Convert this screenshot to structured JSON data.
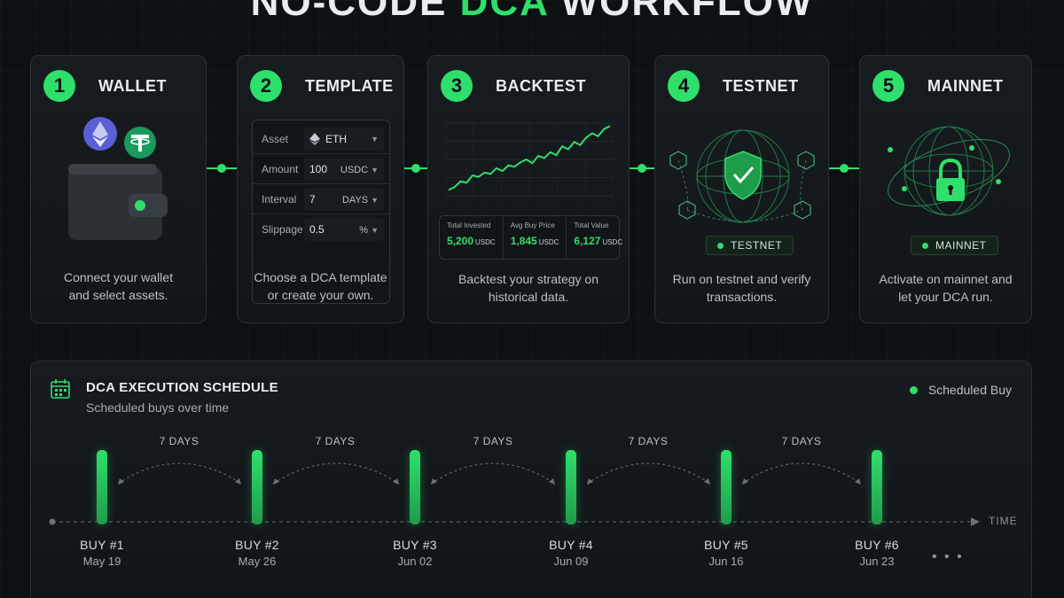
{
  "title": {
    "prefix": "NO-CODE",
    "accent": "DCA",
    "suffix": "WORKFLOW"
  },
  "steps": [
    {
      "num": "1",
      "label": "WALLET",
      "desc": [
        "Connect your wallet",
        "and select assets."
      ]
    },
    {
      "num": "2",
      "label": "TEMPLATE",
      "desc": [
        "Choose a DCA template",
        "or create your own."
      ]
    },
    {
      "num": "3",
      "label": "BACKTEST",
      "desc": [
        "Backtest your strategy on",
        "historical data."
      ]
    },
    {
      "num": "4",
      "label": "TESTNET",
      "desc": [
        "Run on testnet and verify",
        "transactions."
      ]
    },
    {
      "num": "5",
      "label": "MAINNET",
      "desc": [
        "Activate on mainnet and",
        "let your DCA run."
      ]
    }
  ],
  "template_form": [
    {
      "key": "Asset",
      "value": "ETH",
      "unit": ""
    },
    {
      "key": "Amount",
      "value": "100",
      "unit": "USDC"
    },
    {
      "key": "Interval",
      "value": "7",
      "unit": "DAYS"
    },
    {
      "key": "Slippage",
      "value": "0.5",
      "unit": "%"
    }
  ],
  "backtest_stats": [
    {
      "label": "Total Invested",
      "value": "5,200",
      "unit": "USDC"
    },
    {
      "label": "Avg Buy Price",
      "value": "1,845",
      "unit": "USDC"
    },
    {
      "label": "Total Value",
      "value": "6,127",
      "unit": "USDC"
    }
  ],
  "backtest_curve": [
    0.08,
    0.12,
    0.2,
    0.18,
    0.28,
    0.26,
    0.32,
    0.3,
    0.38,
    0.34,
    0.42,
    0.4,
    0.46,
    0.5,
    0.45,
    0.55,
    0.52,
    0.6,
    0.56,
    0.68,
    0.64,
    0.74,
    0.7,
    0.8,
    0.86,
    0.82,
    0.92,
    0.96
  ],
  "badges": {
    "testnet": "TESTNET",
    "mainnet": "MAINNET"
  },
  "schedule": {
    "title": "DCA EXECUTION SCHEDULE",
    "subtitle": "Scheduled buys over time",
    "legend": "Scheduled Buy",
    "axis_label": "TIME",
    "gap_label": "7 DAYS",
    "more": "• • •",
    "buys": [
      {
        "name": "BUY #1",
        "date": "May 19"
      },
      {
        "name": "BUY #2",
        "date": "May 26"
      },
      {
        "name": "BUY #3",
        "date": "Jun 02"
      },
      {
        "name": "BUY #4",
        "date": "Jun 09"
      },
      {
        "name": "BUY #5",
        "date": "Jun 16"
      },
      {
        "name": "BUY #6",
        "date": "Jun 23"
      }
    ]
  },
  "colors": {
    "accent": "#2ee06b",
    "background": "#0d1114",
    "card": "#161b1f"
  }
}
